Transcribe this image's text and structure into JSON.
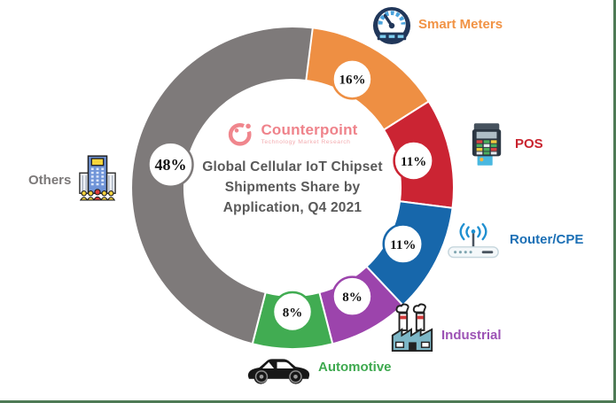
{
  "frame": {
    "border_color": "#4e7a55"
  },
  "logo": {
    "name": "Counterpoint",
    "tagline": "Technology Market Research",
    "name_color": "#ef838b",
    "tagline_color": "#f3adb1"
  },
  "title": {
    "line1": "Global Cellular IoT Chipset",
    "line2": "Shipments Share by",
    "line3": "Application, Q4 2021",
    "color": "#595959"
  },
  "chart_data": {
    "type": "pie",
    "donut": true,
    "title": "Global Cellular IoT Chipset Shipments Share by Application, Q4 2021",
    "start_angle_deg": 0,
    "direction": "clockwise",
    "value_label_format": "{value}%",
    "segments": [
      {
        "label": "Smart Meters",
        "value": 16,
        "color": "#ee8f43",
        "label_color": "#f19345",
        "icon": "gauge-icon"
      },
      {
        "label": "POS",
        "value": 11,
        "color": "#cb2433",
        "label_color": "#c9242f",
        "icon": "pos-terminal-icon"
      },
      {
        "label": "Router/CPE",
        "value": 11,
        "color": "#1767ab",
        "label_color": "#1b6fb5",
        "icon": "router-icon"
      },
      {
        "label": "Industrial",
        "value": 8,
        "color": "#9c44ac",
        "label_color": "#9c52b5",
        "icon": "factory-icon"
      },
      {
        "label": "Automotive",
        "value": 8,
        "color": "#41ac52",
        "label_color": "#3ea94f",
        "icon": "car-icon"
      },
      {
        "label": "Others",
        "value": 48,
        "color": "#7e7a7a",
        "label_color": "#7c7979",
        "icon": "building-icon"
      }
    ],
    "percent_labels": [
      "16%",
      "11%",
      "11%",
      "8%",
      "8%",
      "48%"
    ],
    "bubble": {
      "fill": "#ffffff",
      "text_color": "#111111"
    }
  }
}
